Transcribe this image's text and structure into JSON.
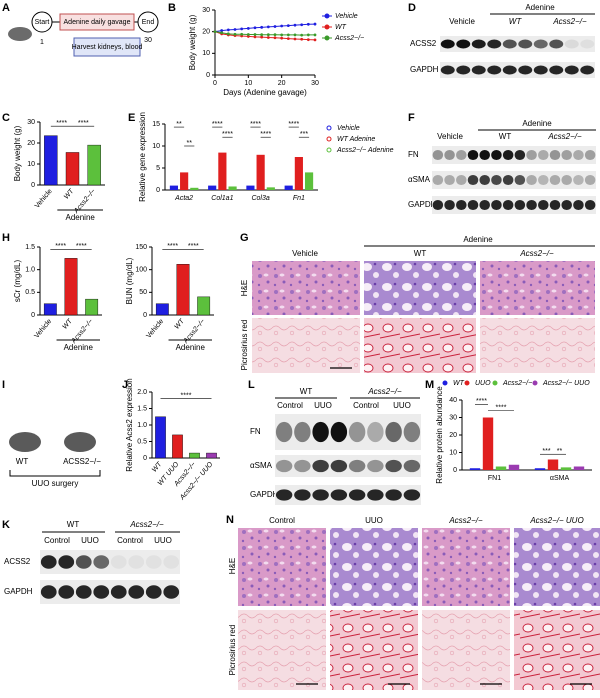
{
  "panels": {
    "A": {
      "letter": "A",
      "start": "Start",
      "gavage": "Adenine daily gavage",
      "end": "End",
      "harvest": "Harvest kidneys, blood",
      "day_start": "1",
      "day_end": "30"
    },
    "D": {
      "letter": "D",
      "group": "Adenine",
      "lanes": [
        "Vehicle",
        "WT",
        "Acss2−/−"
      ],
      "rows": [
        "ACSS2",
        "GAPDH"
      ]
    },
    "F": {
      "letter": "F",
      "group": "Adenine",
      "lanes": [
        "Vehicle",
        "WT",
        "Acss2−/−"
      ],
      "rows": [
        "FN",
        "αSMA",
        "GAPDH"
      ]
    },
    "G": {
      "letter": "G",
      "group": "Adenine",
      "columns": [
        "Vehicle",
        "WT",
        "Acss2−/−"
      ],
      "rows": [
        "H&E",
        "Picrosirius red"
      ]
    },
    "I": {
      "letter": "I",
      "mouse1": "WT",
      "mouse2": "ACSS2−/−",
      "procedure": "UUO surgery"
    },
    "L": {
      "letter": "L",
      "genotypes": [
        "WT",
        "Acss2−/−"
      ],
      "lanes": [
        "Control",
        "UUO",
        "Control",
        "UUO"
      ],
      "rows": [
        "FN",
        "αSMA",
        "GAPDH"
      ]
    },
    "K": {
      "letter": "K",
      "genotypes": [
        "WT",
        "Acss2−/−"
      ],
      "lanes": [
        "Control",
        "UUO",
        "Control",
        "UUO"
      ],
      "rows": [
        "ACSS2",
        "GAPDH"
      ]
    },
    "N": {
      "letter": "N",
      "columns": [
        "Control",
        "UUO",
        "Acss2−/−",
        "Acss2−/− UUO"
      ],
      "rows": [
        "H&E",
        "Picrosirius red"
      ]
    }
  },
  "chart_data": [
    {
      "type": "line",
      "letter": "B",
      "ylabel": "Body weight (g)",
      "xlabel": "Days (Adenine gavage)",
      "legend": "right",
      "x": [
        0,
        2,
        4,
        6,
        8,
        10,
        12,
        14,
        16,
        18,
        20,
        22,
        24,
        26,
        28,
        30
      ],
      "xlim": [
        0,
        30
      ],
      "xticks": [
        0,
        10,
        20,
        30
      ],
      "ylim": [
        0,
        30
      ],
      "yticks": [
        0,
        10,
        20,
        30
      ],
      "series": [
        {
          "name": "Vehicle",
          "color": "#1f1fe0",
          "values": [
            20,
            20.5,
            20.8,
            21,
            21.3,
            21.5,
            21.8,
            22,
            22.2,
            22.4,
            22.6,
            22.8,
            23,
            23.2,
            23.4,
            23.5
          ]
        },
        {
          "name": "WT",
          "color": "#e01f1f",
          "values": [
            20,
            19,
            18.5,
            18.2,
            18,
            17.8,
            17.6,
            17.5,
            17.3,
            17.2,
            17,
            16.8,
            16.6,
            16.5,
            16.3,
            16.2
          ]
        },
        {
          "name": "Acss2−/−",
          "color": "#3a9a2a",
          "values": [
            20,
            19.5,
            19,
            18.8,
            18.8,
            18.7,
            18.7,
            18.6,
            18.6,
            18.6,
            18.5,
            18.5,
            18.5,
            18.4,
            18.5,
            18.5
          ]
        }
      ]
    },
    {
      "type": "bar",
      "letter": "C",
      "ylabel": "Body weight (g)",
      "categories": [
        "Vehicle",
        "WT",
        "Acss2−/−"
      ],
      "values": [
        23.5,
        15.5,
        19
      ],
      "colors": [
        "#1f1fe0",
        "#e01f1f",
        "#5cc03c"
      ],
      "ylim": [
        0,
        30
      ],
      "yticks": [
        0,
        10,
        20,
        30
      ],
      "group_label": "Adenine",
      "annotations": [
        "****",
        "****"
      ]
    },
    {
      "type": "bar",
      "letter": "E",
      "ylabel": "Relative gene expression",
      "legend": "right",
      "categories": [
        "Acta2",
        "Col1a1",
        "Col3a",
        "Fn1"
      ],
      "series": [
        {
          "name": "Vehicle",
          "color": "#1f1fe0",
          "values": [
            1,
            1,
            1,
            1
          ]
        },
        {
          "name": "WT Adenine",
          "color": "#e01f1f",
          "values": [
            4,
            8.5,
            8,
            7.5
          ]
        },
        {
          "name": "Acss2−/− Adenine",
          "color": "#5cc03c",
          "values": [
            0.5,
            0.8,
            0.6,
            4
          ]
        }
      ],
      "ylim": [
        0,
        15
      ],
      "yticks": [
        0,
        5,
        10,
        15
      ],
      "annotations": [
        "**",
        "**",
        "****",
        "****",
        "****",
        "****",
        "****",
        "***"
      ]
    },
    {
      "type": "bar",
      "letter": "H",
      "ylabel": "sCr (mg/dL)",
      "categories": [
        "Vehicle",
        "WT",
        "Acss2−/−"
      ],
      "values": [
        0.25,
        1.25,
        0.35
      ],
      "colors": [
        "#1f1fe0",
        "#e01f1f",
        "#5cc03c"
      ],
      "ylim": [
        0,
        1.5
      ],
      "yticks": [
        0,
        0.5,
        {
          "value": 1,
          "label": "1.0"
        },
        1.5
      ],
      "group_label": "Adenine",
      "annotations": [
        "****",
        "****"
      ]
    },
    {
      "type": "bar",
      "ylabel": "BUN (mg/dL)",
      "categories": [
        "Vehicle",
        "WT",
        "Acss2−/−"
      ],
      "values": [
        25,
        112,
        40
      ],
      "colors": [
        "#1f1fe0",
        "#e01f1f",
        "#5cc03c"
      ],
      "ylim": [
        0,
        150
      ],
      "yticks": [
        0,
        50,
        100,
        150
      ],
      "group_label": "Adenine",
      "annotations": [
        "****",
        "****"
      ]
    },
    {
      "type": "bar",
      "letter": "J",
      "ylabel": "Relative Acss2 expression",
      "categories": [
        "WT",
        "WT UUO",
        "Acss2−/−",
        "Acss2−/− UUO"
      ],
      "values": [
        1.25,
        0.7,
        0.15,
        0.15
      ],
      "colors": [
        "#1f1fe0",
        "#e01f1f",
        "#5cc03c",
        "#9a3bb0"
      ],
      "ylim": [
        0,
        2
      ],
      "yticks": [
        0,
        0.5,
        {
          "value": 1,
          "label": "1.0"
        },
        1.5,
        {
          "value": 2,
          "label": "2.0"
        }
      ],
      "annotations": [
        "****"
      ]
    },
    {
      "type": "bar",
      "letter": "M",
      "ylabel": "Relative protein abundance",
      "legend": "top",
      "categories": [
        "FN1",
        "αSMA"
      ],
      "series": [
        {
          "name": "WT",
          "color": "#1f1fe0",
          "values": [
            1,
            1
          ]
        },
        {
          "name": "UUO",
          "color": "#e01f1f",
          "values": [
            30,
            6
          ]
        },
        {
          "name": "Acss2−/−",
          "color": "#5cc03c",
          "values": [
            2,
            1.5
          ]
        },
        {
          "name": "Acss2−/− UUO",
          "color": "#9a3bb0",
          "values": [
            3,
            2
          ]
        }
      ],
      "ylim": [
        0,
        40
      ],
      "yticks": [
        0,
        10,
        20,
        30,
        40
      ],
      "annotations": [
        "****",
        "****",
        "***",
        "**"
      ]
    }
  ]
}
